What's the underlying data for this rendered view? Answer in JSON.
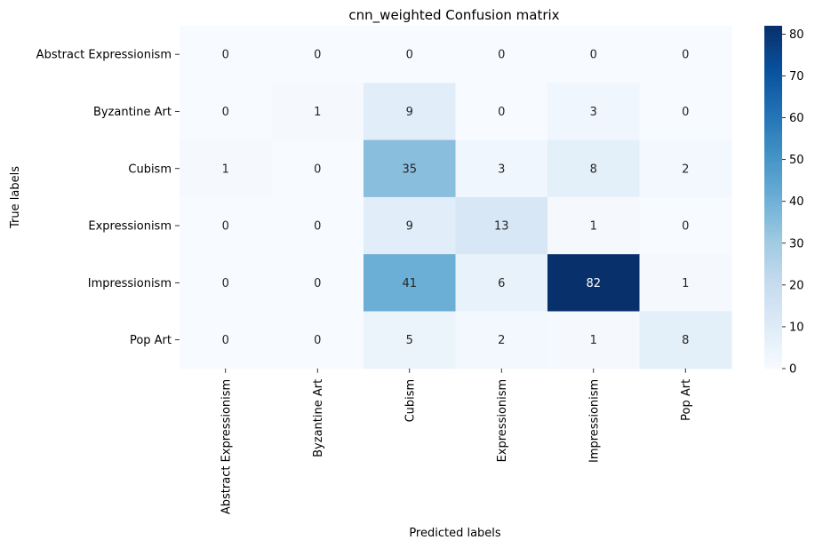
{
  "chart_data": {
    "type": "heatmap",
    "title": "cnn_weighted Confusion matrix",
    "xlabel": "Predicted labels",
    "ylabel": "True labels",
    "x_categories": [
      "Abstract Expressionism",
      "Byzantine Art",
      "Cubism",
      "Expressionism",
      "Impressionism",
      "Pop Art"
    ],
    "y_categories": [
      "Abstract Expressionism",
      "Byzantine Art",
      "Cubism",
      "Expressionism",
      "Impressionism",
      "Pop Art"
    ],
    "values": [
      [
        0,
        0,
        0,
        0,
        0,
        0
      ],
      [
        0,
        1,
        9,
        0,
        3,
        0
      ],
      [
        1,
        0,
        35,
        3,
        8,
        2
      ],
      [
        0,
        0,
        9,
        13,
        1,
        0
      ],
      [
        0,
        0,
        41,
        6,
        82,
        1
      ],
      [
        0,
        0,
        5,
        2,
        1,
        8
      ]
    ],
    "colormap": "Blues",
    "vmin": 0,
    "vmax": 82,
    "colorbar_ticks": [
      0,
      10,
      20,
      30,
      40,
      50,
      60,
      70,
      80
    ],
    "grid": false,
    "annotations": true
  }
}
